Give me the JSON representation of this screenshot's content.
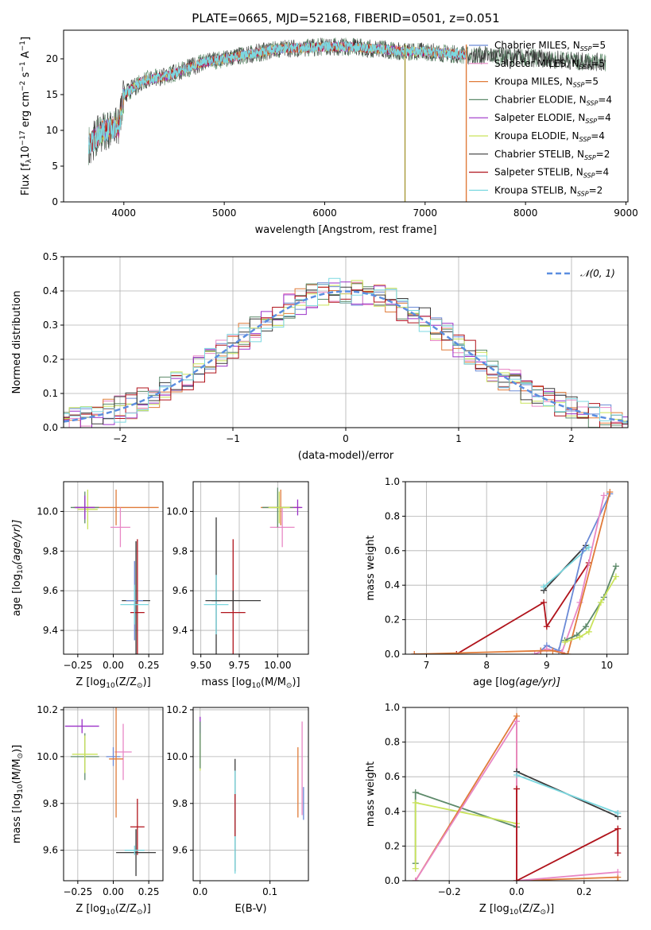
{
  "figure_title": "PLATE=0665, MJD=52168, FIBERID=0501, z=0.051",
  "series_styles": [
    {
      "name": "Chabrier MILES",
      "nssp": "5",
      "color": "#6b8ad6"
    },
    {
      "name": "Salpeter MILES",
      "nssp": "5",
      "color": "#e887c5"
    },
    {
      "name": "Kroupa MILES",
      "nssp": "5",
      "color": "#e07b39"
    },
    {
      "name": "Chabrier ELODIE",
      "nssp": "4",
      "color": "#5d8a6a"
    },
    {
      "name": "Salpeter ELODIE",
      "nssp": "4",
      "color": "#9b30c8"
    },
    {
      "name": "Kroupa ELODIE",
      "nssp": "4",
      "color": "#c9e35a"
    },
    {
      "name": "Chabrier STELIB",
      "nssp": "2",
      "color": "#3a3a3a"
    },
    {
      "name": "Salpeter STELIB",
      "nssp": "4",
      "color": "#b0131b"
    },
    {
      "name": "Kroupa STELIB",
      "nssp": "2",
      "color": "#7bd8e0"
    }
  ],
  "chart_data": [
    {
      "id": "spectrum",
      "type": "line",
      "title": "PLATE=0665, MJD=52168, FIBERID=0501, z=0.051",
      "xlabel": "wavelength [Angstrom, rest frame]",
      "ylabel_prefix": "Flux [f",
      "ylabel_units": "10",
      "ylabel_rest": " erg cm",
      "xlim": [
        3400,
        9020
      ],
      "ylim": [
        0,
        24
      ],
      "xticks": [
        4000,
        5000,
        6000,
        7000,
        8000,
        9000
      ],
      "yticks": [
        0,
        5,
        10,
        15,
        20
      ],
      "grid": false,
      "legend_position": "upper-right",
      "data_continuum": {
        "x": [
          3650,
          3800,
          3950,
          4000,
          4200,
          4400,
          4600,
          4800,
          5000,
          5200,
          5400,
          5600,
          5800,
          6000,
          6200,
          6400,
          6600,
          6800,
          7000,
          7200,
          7400,
          7600,
          7800,
          8000,
          8200,
          8400,
          8600,
          8800
        ],
        "y": [
          8,
          10,
          10.5,
          15,
          17,
          17.5,
          18.5,
          19.5,
          20,
          20.5,
          21,
          21.5,
          21.5,
          21.7,
          21.7,
          21.5,
          21.3,
          21,
          21,
          20.8,
          20.5,
          20.5,
          20.3,
          20.2,
          20,
          19.8,
          19.6,
          19.5
        ]
      },
      "model_range": [
        3650,
        7410
      ],
      "drop_lines": [
        6800,
        7410
      ]
    },
    {
      "id": "residual-histogram",
      "type": "line",
      "xlabel": "(data-model)/error",
      "ylabel": "Normed distribution",
      "xlim": [
        -2.5,
        2.5
      ],
      "ylim": [
        0,
        0.5
      ],
      "xticks": [
        -2,
        -1,
        0,
        1,
        2
      ],
      "yticks": [
        0,
        0.1,
        0.2,
        0.3,
        0.4,
        0.5
      ],
      "grid": true,
      "legend_position": "upper-right",
      "reference_curve": "𝒩(0, 1)",
      "bin_width": 0.1
    },
    {
      "id": "age-vs-z",
      "type": "scatter",
      "xlabel_main": "Z [log",
      "xlabel_sub": "10",
      "xlabel_tail": "(Z/Z",
      "ylabel_main": "age  [log",
      "ylabel_tail": "(age/yr)]",
      "xlim": [
        -0.35,
        0.35
      ],
      "ylim": [
        9.28,
        10.15
      ],
      "xticks": [
        -0.25,
        0.0,
        0.25
      ],
      "yticks": [
        9.4,
        9.6,
        9.8,
        10.0
      ],
      "grid": true,
      "points": [
        {
          "x": 0.16,
          "y": 9.55,
          "xerr": 0.1,
          "yerr": 0.3,
          "color": "#3a3a3a"
        },
        {
          "x": 0.15,
          "y": 9.55,
          "xerr": 0.06,
          "yerr": 0.2,
          "color": "#6b8ad6"
        },
        {
          "x": 0.17,
          "y": 9.49,
          "xerr": 0.05,
          "yerr": 0.37,
          "color": "#b0131b"
        },
        {
          "x": 0.15,
          "y": 9.53,
          "xerr": 0.1,
          "yerr": 0.1,
          "color": "#7bd8e0"
        },
        {
          "x": 0.02,
          "y": 10.02,
          "xerr": 0.3,
          "yerr": 0.09,
          "color": "#e07b39"
        },
        {
          "x": 0.05,
          "y": 9.92,
          "xerr": 0.07,
          "yerr": 0.1,
          "color": "#e887c5"
        },
        {
          "x": -0.2,
          "y": 10.02,
          "xerr": 0.1,
          "yerr": 0.08,
          "color": "#5d8a6a"
        },
        {
          "x": -0.18,
          "y": 10.01,
          "xerr": 0.07,
          "yerr": 0.1,
          "color": "#c9e35a"
        },
        {
          "x": -0.2,
          "y": 10.02,
          "xerr": 0.07,
          "yerr": 0.06,
          "color": "#9b30c8"
        }
      ]
    },
    {
      "id": "age-vs-mass",
      "type": "scatter",
      "xlabel_main": "mass [log",
      "xlabel_sub": "10",
      "xlabel_tail": "(M/M",
      "xlim": [
        9.45,
        10.2
      ],
      "ylim": [
        9.28,
        10.15
      ],
      "xticks": [
        9.5,
        9.75,
        10.0
      ],
      "yticks": [
        9.4,
        9.6,
        9.8,
        10.0
      ],
      "grid": true,
      "points": [
        {
          "x": 9.6,
          "y": 9.55,
          "xerr": 0.03,
          "yerr": 0.42,
          "color": "#3a3a3a"
        },
        {
          "x": 9.6,
          "y": 9.53,
          "xerr": 0.08,
          "yerr": 0.15,
          "color": "#7bd8e0"
        },
        {
          "x": 9.71,
          "y": 9.49,
          "xerr": 0.08,
          "yerr": 0.37,
          "color": "#b0131b"
        },
        {
          "x": 9.71,
          "y": 9.55,
          "xerr": 0.18,
          "yerr": 0.05,
          "color": "#3a3a3a"
        },
        {
          "x": 10.02,
          "y": 10.02,
          "xerr": 0.13,
          "yerr": 0.09,
          "color": "#e07b39"
        },
        {
          "x": 10.03,
          "y": 9.92,
          "xerr": 0.08,
          "yerr": 0.1,
          "color": "#e887c5"
        },
        {
          "x": 10.0,
          "y": 10.02,
          "xerr": 0.1,
          "yerr": 0.1,
          "color": "#5d8a6a"
        },
        {
          "x": 10.01,
          "y": 10.02,
          "xerr": 0.07,
          "yerr": 0.08,
          "color": "#c9e35a"
        },
        {
          "x": 10.13,
          "y": 10.02,
          "xerr": 0.03,
          "yerr": 0.04,
          "color": "#9b30c8"
        }
      ]
    },
    {
      "id": "mass-weight-vs-age",
      "type": "line",
      "xlabel_main": "age  [log",
      "xlabel_tail": "(age/yr)]",
      "ylabel": "mass weight",
      "xlim": [
        6.65,
        10.35
      ],
      "ylim": [
        0,
        1
      ],
      "xticks": [
        7,
        8,
        9,
        10
      ],
      "yticks": [
        0.0,
        0.2,
        0.4,
        0.6,
        0.8,
        1.0
      ],
      "grid": true,
      "series": [
        {
          "color": "#b0131b",
          "x": [
            6.8,
            7.5,
            8.95,
            9.0,
            9.7
          ],
          "y": [
            0.0,
            0.0,
            0.3,
            0.16,
            0.53
          ]
        },
        {
          "color": "#3a3a3a",
          "x": [
            8.95,
            9.65
          ],
          "y": [
            0.37,
            0.63
          ]
        },
        {
          "color": "#7bd8e0",
          "x": [
            8.95,
            9.7
          ],
          "y": [
            0.39,
            0.62
          ]
        },
        {
          "color": "#6b8ad6",
          "x": [
            8.9,
            9.0,
            9.2,
            9.6,
            10.05
          ],
          "y": [
            0.02,
            0.05,
            0.02,
            0.6,
            0.93
          ]
        },
        {
          "color": "#e887c5",
          "x": [
            8.8,
            9.0,
            9.25,
            9.55,
            9.95
          ],
          "y": [
            0.0,
            0.03,
            0.01,
            0.3,
            0.92
          ]
        },
        {
          "color": "#e07b39",
          "x": [
            6.8,
            8.9,
            9.1,
            9.35,
            10.05
          ],
          "y": [
            0.0,
            0.02,
            0.02,
            0.0,
            0.94
          ]
        },
        {
          "color": "#5d8a6a",
          "x": [
            9.3,
            9.5,
            9.65,
            9.95,
            10.15
          ],
          "y": [
            0.08,
            0.11,
            0.16,
            0.33,
            0.51
          ]
        },
        {
          "color": "#c9e35a",
          "x": [
            9.3,
            9.55,
            9.7,
            9.9,
            10.15
          ],
          "y": [
            0.07,
            0.1,
            0.13,
            0.3,
            0.45
          ]
        }
      ]
    },
    {
      "id": "mass-vs-z",
      "type": "scatter",
      "xlabel_main": "Z [log",
      "xlabel_sub": "10",
      "xlabel_tail": "(Z/Z",
      "ylabel_main": "mass [log",
      "ylabel_tail": "(M/M",
      "xlim": [
        -0.35,
        0.35
      ],
      "ylim": [
        9.47,
        10.21
      ],
      "xticks": [
        -0.25,
        0.0,
        0.25
      ],
      "yticks": [
        9.6,
        9.8,
        10.0,
        10.2
      ],
      "grid": true,
      "points": [
        {
          "x": -0.22,
          "y": 10.13,
          "xerr": 0.12,
          "yerr": 0.03,
          "color": "#9b30c8"
        },
        {
          "x": -0.2,
          "y": 10.0,
          "xerr": 0.1,
          "yerr": 0.1,
          "color": "#5d8a6a"
        },
        {
          "x": -0.2,
          "y": 10.01,
          "xerr": 0.09,
          "yerr": 0.08,
          "color": "#c9e35a"
        },
        {
          "x": 0.07,
          "y": 10.02,
          "xerr": 0.06,
          "yerr": 0.12,
          "color": "#e887c5"
        },
        {
          "x": 0.0,
          "y": 10.0,
          "xerr": 0.05,
          "yerr": 0.04,
          "color": "#6b8ad6"
        },
        {
          "x": 0.02,
          "y": 9.99,
          "xerr": 0.05,
          "yerr": 0.25,
          "color": "#e07b39"
        },
        {
          "x": 0.17,
          "y": 9.7,
          "xerr": 0.05,
          "yerr": 0.12,
          "color": "#b0131b"
        },
        {
          "x": 0.16,
          "y": 9.59,
          "xerr": 0.14,
          "yerr": 0.1,
          "color": "#3a3a3a"
        },
        {
          "x": 0.15,
          "y": 9.6,
          "xerr": 0.07,
          "yerr": 0.02,
          "color": "#7bd8e0"
        }
      ]
    },
    {
      "id": "mass-vs-ebv",
      "type": "scatter",
      "xlabel": "E(B-V)",
      "xlim": [
        -0.01,
        0.155
      ],
      "ylim": [
        9.47,
        10.21
      ],
      "xticks": [
        0.0,
        0.1
      ],
      "yticks": [
        9.6,
        9.8,
        10.0,
        10.2
      ],
      "grid": true,
      "points": [
        {
          "x": 0.0,
          "y": 10.12,
          "xerr": 0.0,
          "yerr": 0.05,
          "color": "#9b30c8"
        },
        {
          "x": 0.0,
          "y": 10.02,
          "xerr": 0.0,
          "yerr": 0.08,
          "color": "#c9e35a"
        },
        {
          "x": 0.0,
          "y": 10.05,
          "xerr": 0.0,
          "yerr": 0.1,
          "color": "#5d8a6a"
        },
        {
          "x": 0.05,
          "y": 9.75,
          "xerr": 0.0,
          "yerr": 0.24,
          "color": "#3a3a3a"
        },
        {
          "x": 0.05,
          "y": 9.72,
          "xerr": 0.0,
          "yerr": 0.22,
          "color": "#7bd8e0"
        },
        {
          "x": 0.05,
          "y": 9.75,
          "xerr": 0.0,
          "yerr": 0.09,
          "color": "#b0131b"
        },
        {
          "x": 0.14,
          "y": 9.89,
          "xerr": 0.0,
          "yerr": 0.15,
          "color": "#e07b39"
        },
        {
          "x": 0.146,
          "y": 9.95,
          "xerr": 0.0,
          "yerr": 0.2,
          "color": "#e887c5"
        },
        {
          "x": 0.148,
          "y": 9.8,
          "xerr": 0.0,
          "yerr": 0.07,
          "color": "#6b8ad6"
        }
      ]
    },
    {
      "id": "mass-weight-vs-z",
      "type": "line",
      "xlabel_main": "Z [log",
      "xlabel_sub": "10",
      "xlabel_tail": "(Z/Z",
      "ylabel": "mass weight",
      "xlim": [
        -0.33,
        0.33
      ],
      "ylim": [
        0,
        1
      ],
      "xticks": [
        -0.2,
        0.0,
        0.2
      ],
      "yticks": [
        0.0,
        0.2,
        0.4,
        0.6,
        0.8,
        1.0
      ],
      "grid": true,
      "series": [
        {
          "color": "#5d8a6a",
          "x": [
            -0.3,
            -0.3,
            0.0
          ],
          "y": [
            0.1,
            0.51,
            0.31
          ]
        },
        {
          "color": "#c9e35a",
          "x": [
            -0.3,
            -0.3,
            0.0
          ],
          "y": [
            0.07,
            0.45,
            0.33
          ]
        },
        {
          "color": "#e07b39",
          "x": [
            -0.3,
            0.0,
            0.0,
            0.3,
            0.3
          ],
          "y": [
            0.0,
            0.95,
            0.0,
            0.02,
            0.0
          ]
        },
        {
          "color": "#e887c5",
          "x": [
            -0.3,
            0.0,
            0.0,
            0.3
          ],
          "y": [
            0.0,
            0.92,
            0.0,
            0.05
          ]
        },
        {
          "color": "#3a3a3a",
          "x": [
            0.0,
            0.3
          ],
          "y": [
            0.63,
            0.37
          ]
        },
        {
          "color": "#7bd8e0",
          "x": [
            0.0,
            0.3
          ],
          "y": [
            0.61,
            0.39
          ]
        },
        {
          "color": "#b0131b",
          "x": [
            0.0,
            0.0,
            0.3,
            0.3
          ],
          "y": [
            0.53,
            0.0,
            0.3,
            0.16
          ]
        }
      ]
    }
  ]
}
